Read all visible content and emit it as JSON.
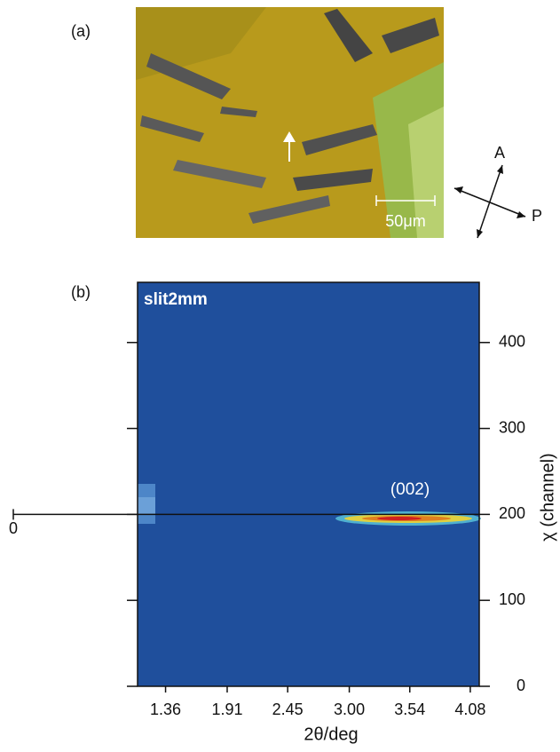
{
  "panel_a": {
    "label": "(a)",
    "scale_bar": "50μm",
    "analyzer": "A",
    "polarizer": "P"
  },
  "chart_data": {
    "type": "heatmap",
    "panel_label": "(b)",
    "title": "slit2mm",
    "annotation": "(002)",
    "reference_label": "0",
    "x_label": "2θ/deg",
    "y_label": "χ (channel)",
    "xlim": [
      1.11,
      4.16
    ],
    "xticks": [
      {
        "value": 1.36,
        "label": "1.36"
      },
      {
        "value": 1.91,
        "label": "1.91"
      },
      {
        "value": 2.45,
        "label": "2.45"
      },
      {
        "value": 3,
        "label": "3.00"
      },
      {
        "value": 3.54,
        "label": "3.54"
      },
      {
        "value": 4.08,
        "label": "4.08"
      }
    ],
    "ylim": [
      0,
      470
    ],
    "yticks": [
      0,
      100,
      200,
      300,
      400
    ],
    "reference_y": 200
  }
}
